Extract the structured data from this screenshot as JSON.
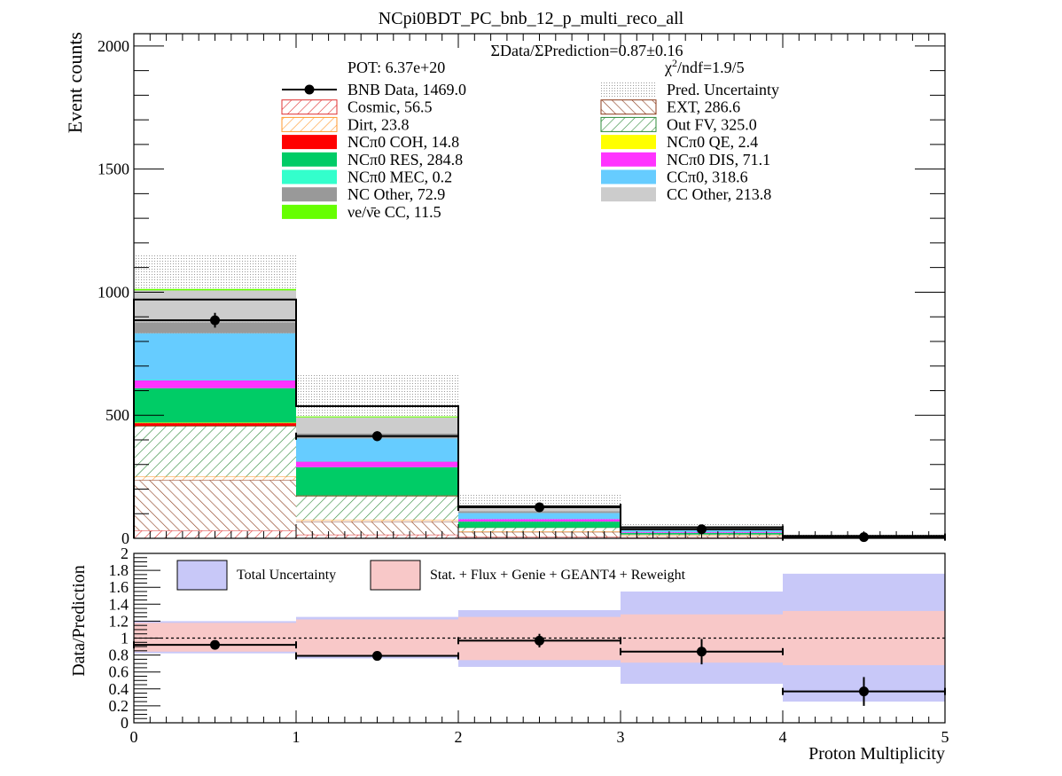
{
  "chart_data": [
    {
      "type": "bar",
      "stacked": true,
      "title": "NCpi0BDT_PC_bnb_12_p_multi_reco_all",
      "ylabel": "Event counts",
      "ylim": [
        0,
        2050
      ],
      "yticks": [
        0,
        500,
        1000,
        1500,
        2000
      ],
      "x_edges": [
        0,
        1,
        2,
        3,
        4,
        5
      ],
      "ratio_text": "ΣData/ΣPrediction=0.87±0.16",
      "pot_text": "POT: 6.37e+20",
      "chi2": {
        "pre": "χ",
        "sup": "2",
        "post": "/ndf=1.9/5"
      },
      "stack": [
        {
          "name": "Cosmic, 56.5",
          "fill": "#e03030",
          "pattern": "hatchRed",
          "values": [
            32,
            15,
            6,
            3,
            1
          ]
        },
        {
          "name": "EXT, 286.6",
          "fill": "#8b3a1a",
          "pattern": "hatchBrown",
          "values": [
            205,
            52,
            20,
            8,
            2
          ]
        },
        {
          "name": "Dirt, 23.8",
          "fill": "#ff9a30",
          "pattern": "hatchOrange",
          "values": [
            14,
            7,
            2,
            1,
            0
          ]
        },
        {
          "name": "Out FV, 325.0",
          "fill": "#2e8b3a",
          "pattern": "hatchGreen",
          "values": [
            205,
            98,
            16,
            5,
            1
          ]
        },
        {
          "name": "NCπ0 COH, 14.8",
          "fill": "#ff0000",
          "values": [
            12,
            2,
            0,
            0,
            0
          ]
        },
        {
          "name": "NCπ0 QE, 2.4",
          "fill": "#ffff00",
          "values": [
            2,
            0,
            0,
            0,
            0
          ]
        },
        {
          "name": "NCπ0 RES, 284.8",
          "fill": "#00cc66",
          "values": [
            140,
            115,
            24,
            5,
            1
          ]
        },
        {
          "name": "NCπ0 DIS, 71.1",
          "fill": "#ff33ff",
          "values": [
            33,
            24,
            10,
            3,
            1
          ]
        },
        {
          "name": "NCπ0 MEC, 0.2",
          "fill": "#33ffcc",
          "values": [
            0.1,
            0.1,
            0,
            0,
            0
          ]
        },
        {
          "name": "CCπ0, 318.6",
          "fill": "#66ccff",
          "values": [
            190,
            93,
            25,
            8,
            2
          ]
        },
        {
          "name": "NC Other, 72.9",
          "fill": "#999999",
          "values": [
            44,
            20,
            7,
            2,
            0
          ]
        },
        {
          "name": "CC Other, 213.8",
          "fill": "#cccccc",
          "values": [
            130,
            65,
            14,
            4,
            1
          ]
        },
        {
          "name": "νe/ν̄e CC, 11.5",
          "fill": "#66ff00",
          "values": [
            6,
            4,
            1,
            0.5,
            0
          ]
        }
      ],
      "pred_total": [
        970,
        537,
        130,
        45,
        10
      ],
      "pred_uncertainty": [
        1150,
        668,
        178,
        60,
        18
      ],
      "data": {
        "name": "BNB Data, 1469.0",
        "x": [
          0.5,
          1.5,
          2.5,
          3.5,
          4.5
        ],
        "values": [
          886,
          415,
          126,
          37,
          5
        ],
        "errors": [
          30,
          20,
          11,
          6,
          2
        ]
      }
    },
    {
      "type": "scatter",
      "xlabel": "Proton Multiplicity",
      "ylabel": "Data/Prediction",
      "ylim": [
        0,
        2
      ],
      "xlim": [
        0,
        5
      ],
      "yticks": [
        "0",
        "0.2",
        "0.4",
        "0.6",
        "0.8",
        "1",
        "1.2",
        "1.4",
        "1.6",
        "1.8",
        "2"
      ],
      "xticks": [
        "0",
        "1",
        "2",
        "3",
        "4",
        "5"
      ],
      "legend": {
        "total": "Total Uncertainty",
        "stat": "Stat. + Flux + Genie + GEANT4 + Reweight"
      },
      "colors": {
        "total": "#c8c8f8",
        "stat": "#f8c8c8"
      },
      "total_band": [
        [
          0.82,
          1.2
        ],
        [
          0.76,
          1.25
        ],
        [
          0.66,
          1.33
        ],
        [
          0.46,
          1.55
        ],
        [
          0.25,
          1.76
        ]
      ],
      "stat_band": [
        [
          0.84,
          1.18
        ],
        [
          0.8,
          1.22
        ],
        [
          0.74,
          1.25
        ],
        [
          0.71,
          1.28
        ],
        [
          0.68,
          1.32
        ]
      ],
      "points": [
        {
          "x": 0.5,
          "y": 0.92,
          "err": 0.03
        },
        {
          "x": 1.5,
          "y": 0.79,
          "err": 0.03
        },
        {
          "x": 2.5,
          "y": 0.97,
          "err": 0.08
        },
        {
          "x": 3.5,
          "y": 0.84,
          "err": 0.15
        },
        {
          "x": 4.5,
          "y": 0.37,
          "err": 0.17
        }
      ]
    }
  ]
}
